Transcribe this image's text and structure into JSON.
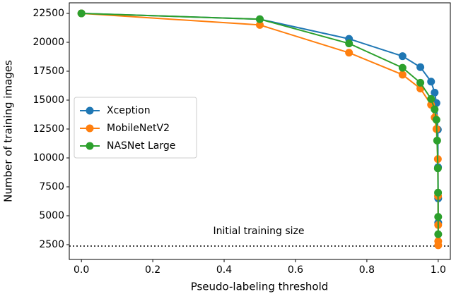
{
  "chart_data": {
    "type": "line",
    "x_label": "Pseudo-labeling threshold",
    "y_label": "Number of training images",
    "annotation": "Initial training size",
    "reference_line": 2380,
    "xlim": [
      -0.034,
      1.034
    ],
    "ylim": [
      1220,
      23415
    ],
    "xticks": [
      {
        "value": 0,
        "label": "0.0"
      },
      0.2,
      0.4,
      0.6,
      0.8,
      {
        "value": 1,
        "label": "1.0"
      }
    ],
    "yticks": [
      2500,
      5000,
      7500,
      10000,
      12500,
      15000,
      17500,
      20000,
      22500
    ],
    "legend": "center left",
    "grid": false,
    "series": [
      {
        "name": "Xception",
        "color": "#1f77b4",
        "x": [
          0,
          0.5,
          0.75,
          0.9,
          0.95,
          0.98,
          0.99,
          0.995,
          0.999,
          0.9995,
          0.9999,
          1.0
        ],
        "values": [
          22500,
          22000,
          20300,
          18800,
          17850,
          16600,
          15650,
          14750,
          12450,
          9200,
          6500,
          4400
        ]
      },
      {
        "name": "MobileNetV2",
        "color": "#ff7f0e",
        "x": [
          0,
          0.5,
          0.75,
          0.9,
          0.95,
          0.98,
          0.99,
          0.995,
          0.999,
          0.9995,
          0.9999,
          1.0,
          1.0
        ],
        "values": [
          22500,
          21500,
          19100,
          17200,
          16000,
          14600,
          13500,
          12500,
          9900,
          6700,
          4200,
          2800,
          2450
        ]
      },
      {
        "name": "NASNet Large",
        "color": "#2ca02c",
        "x": [
          0,
          0.5,
          0.75,
          0.9,
          0.95,
          0.98,
          0.99,
          0.995,
          0.997,
          0.999,
          0.9995,
          0.9999,
          1.0
        ],
        "values": [
          22500,
          22000,
          19900,
          17800,
          16500,
          15100,
          14200,
          13300,
          11500,
          9100,
          7000,
          4900,
          3400
        ]
      }
    ]
  }
}
